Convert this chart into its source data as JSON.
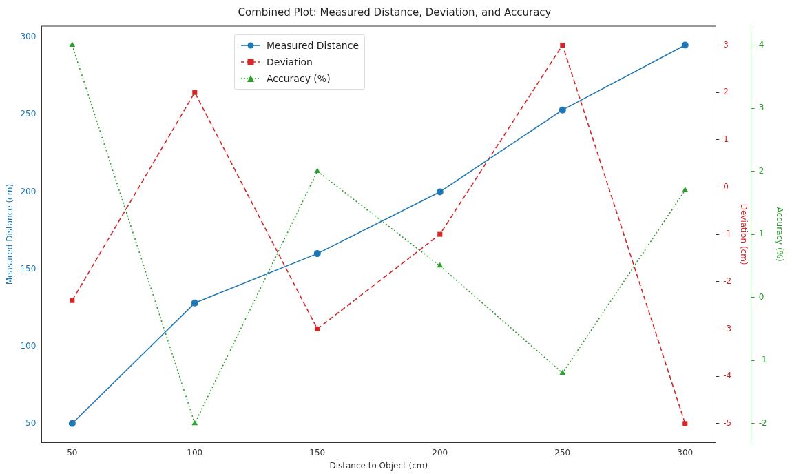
{
  "chart_data": {
    "type": "line",
    "title": "Combined Plot: Measured Distance, Deviation, and Accuracy",
    "xlabel": "Distance to Object (cm)",
    "ylabel": "Measured Distance (cm)",
    "y2label": "Deviation (cm)",
    "y3label": "Accuracy (%)",
    "x": [
      50,
      100,
      150,
      200,
      250,
      300
    ],
    "xlim": [
      37.5,
      312.5
    ],
    "xticks": [
      50,
      100,
      150,
      200,
      250,
      300
    ],
    "ylim": [
      37.75,
      307.25
    ],
    "yticks": [
      50,
      100,
      150,
      200,
      250,
      300
    ],
    "y2lim": [
      -5.4,
      3.4
    ],
    "y2ticks": [
      -5,
      -4,
      -3,
      -2,
      -1,
      0,
      1,
      2,
      3
    ],
    "y3lim": [
      -2.3,
      4.3
    ],
    "y3ticks": [
      -2,
      -1,
      0,
      1,
      2,
      3,
      4
    ],
    "grid": false,
    "legend": "top left",
    "series": [
      {
        "name": "Measured Distance",
        "color": "#1f77b4",
        "marker": "circle",
        "line_style": "solid",
        "values": [
          50,
          128,
          160,
          200,
          253,
          295
        ]
      },
      {
        "name": "Deviation",
        "color": "#d62728",
        "marker": "square",
        "line_style": "dashed",
        "axis": "y2",
        "values": [
          -2.4,
          2,
          -3,
          -1,
          3,
          -5
        ]
      },
      {
        "name": "Accuracy (%)",
        "color": "#2ca02c",
        "marker": "triangle",
        "line_style": "dotted",
        "axis": "y3",
        "values": [
          4,
          -2,
          2,
          0.5,
          -1.2,
          1.7
        ]
      }
    ]
  }
}
